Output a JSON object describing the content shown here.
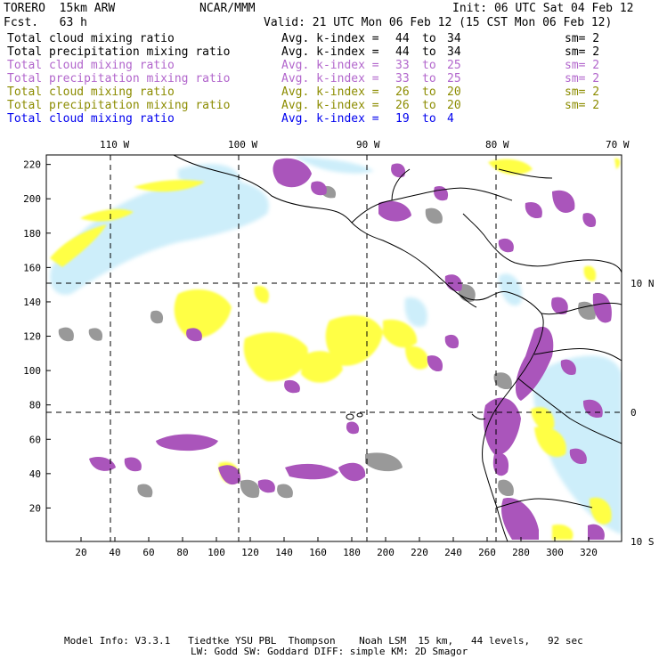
{
  "header": {
    "model_name": "TORERO  15km ARW",
    "org": "NCAR/MMM",
    "init": "Init: 06 UTC Sat 04 Feb 12",
    "fcst": "Fcst.   63 h",
    "valid": "Valid: 21 UTC Mon 06 Feb 12 (15 CST Mon 06 Feb 12)"
  },
  "fields": [
    {
      "name": "Total cloud mixing ratio",
      "index_label": "Avg. k-index =",
      "from": "44",
      "to_word": "to",
      "to": "34",
      "sm": "sm= 2",
      "color": "#000000"
    },
    {
      "name": "Total precipitation mixing ratio",
      "index_label": "Avg. k-index =",
      "from": "44",
      "to_word": "to",
      "to": "34",
      "sm": "sm= 2",
      "color": "#000000"
    },
    {
      "name": "Total cloud mixing ratio",
      "index_label": "Avg. k-index =",
      "from": "33",
      "to_word": "to",
      "to": "25",
      "sm": "sm= 2",
      "color": "#b266cc"
    },
    {
      "name": "Total precipitation mixing ratio",
      "index_label": "Avg. k-index =",
      "from": "33",
      "to_word": "to",
      "to": "25",
      "sm": "sm= 2",
      "color": "#b266cc"
    },
    {
      "name": "Total cloud mixing ratio",
      "index_label": "Avg. k-index =",
      "from": "26",
      "to_word": "to",
      "to": "20",
      "sm": "sm= 2",
      "color": "#8c8c00"
    },
    {
      "name": "Total precipitation mixing ratio",
      "index_label": "Avg. k-index =",
      "from": "26",
      "to_word": "to",
      "to": "20",
      "sm": "sm= 2",
      "color": "#8c8c00"
    },
    {
      "name": "Total cloud mixing ratio",
      "index_label": "Avg. k-index =",
      "from": "19",
      "to_word": "to",
      "to": "4",
      "sm": "",
      "color": "#0000ee"
    }
  ],
  "map": {
    "lon_labels": [
      "110 W",
      "100 W",
      "90 W",
      "80 W",
      "70 W"
    ],
    "lat_labels": [
      "10 N",
      "0",
      "10 S"
    ],
    "x_ticks": [
      "20",
      "40",
      "60",
      "80",
      "100",
      "120",
      "140",
      "160",
      "180",
      "200",
      "220",
      "240",
      "260",
      "280",
      "300",
      "320"
    ],
    "y_ticks": [
      "220",
      "200",
      "180",
      "160",
      "140",
      "120",
      "100",
      "80",
      "60",
      "40",
      "20"
    ],
    "colors": {
      "cloud_low": "#cdeefa",
      "precip_yellow": "#ffff44",
      "purple": "#aa55bb",
      "gray": "#999999",
      "coast": "#000000"
    }
  },
  "footer": {
    "line1": "Model Info: V3.3.1   Tiedtke YSU PBL  Thompson    Noah LSM  15 km,   44 levels,   92 sec",
    "line2": "LW: Godd SW: Goddard DIFF: simple KM: 2D Smagor"
  }
}
